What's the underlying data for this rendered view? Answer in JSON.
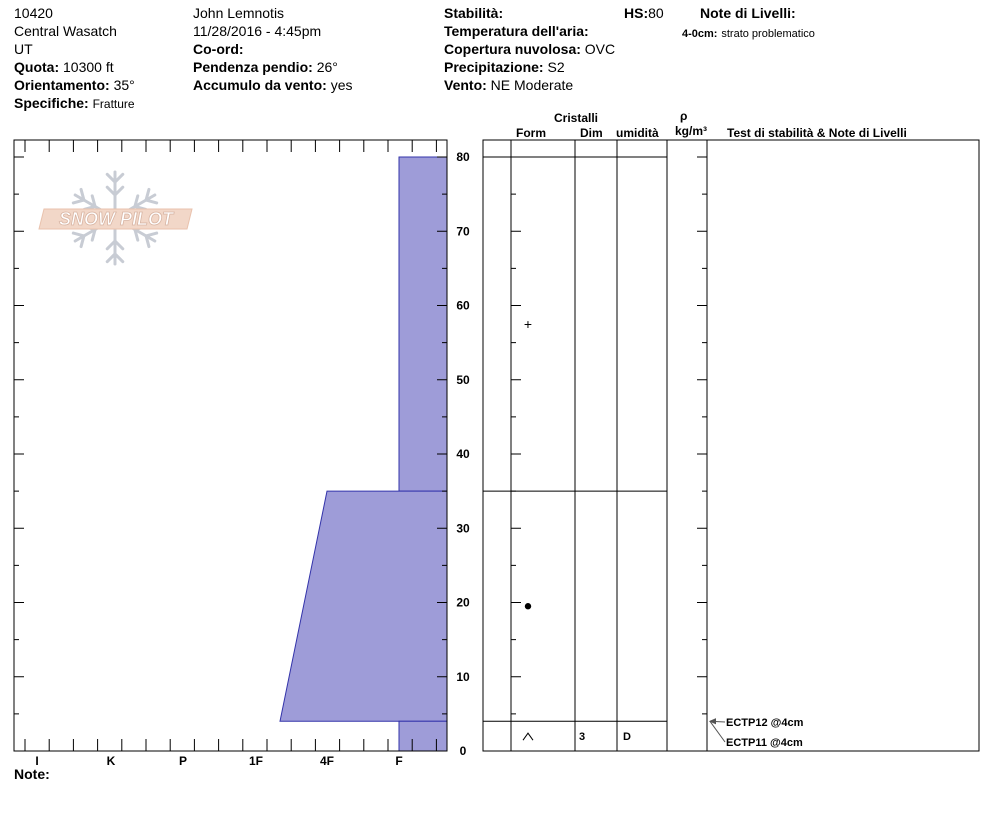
{
  "header": {
    "id": "10420",
    "range": "Central Wasatch",
    "state": "UT",
    "elevation_label": "Quota:",
    "elevation_value": "10300 ft",
    "aspect_label": "Orientamento:",
    "aspect_value": "35°",
    "specifics_label": "Specifiche:",
    "specifics_value": "Fratture",
    "observer": "John  Lemnotis",
    "datetime": "11/28/2016 - 4:45pm",
    "coord_label": "Co-ord:",
    "slope_label": "Pendenza pendio:",
    "slope_value": "26°",
    "wind_loading_label": "Accumulo da vento:",
    "wind_loading_value": "yes",
    "stability_label": "Stabilità:",
    "air_temp_label": "Temperatura dell'aria:",
    "cloud_label": "Copertura nuvolosa:",
    "cloud_value": "OVC",
    "precip_label": "Precipitazione:",
    "precip_value": "S2",
    "wind_label": "Vento:",
    "wind_value": "NE Moderate",
    "hs_label": "HS:",
    "hs_value": "80",
    "layer_notes_label": "Note di Livelli:",
    "layer_note_depth": "4-0cm:",
    "layer_note_text": "strato problematico"
  },
  "logo": {
    "text": "SNOW PILOT"
  },
  "columns": {
    "crystals": "Cristalli",
    "form": "Form",
    "size": "Dim",
    "moisture": "umidità",
    "rho": "ρ",
    "density_unit": "kg/m³",
    "tests": "Test di stabilità & Note di Livelli"
  },
  "footer": {
    "note_label": "Note:"
  },
  "colors": {
    "hardness_fill": "#9e9cd8",
    "hardness_stroke": "#3333aa"
  },
  "chart_data": {
    "type": "snow_profile",
    "y_axis": {
      "min": 0,
      "max": 80,
      "ticks": [
        0,
        10,
        20,
        30,
        40,
        50,
        60,
        70,
        80
      ],
      "minor_step": 5
    },
    "hardness_scale": [
      "I",
      "K",
      "P",
      "1F",
      "4F",
      "F"
    ],
    "hardness_profile": [
      {
        "top": 80,
        "bottom": 35,
        "hardness_top": "F",
        "hardness_bottom": "F"
      },
      {
        "top": 35,
        "bottom": 4,
        "hardness_top": "4F",
        "hardness_bottom": "1F-"
      },
      {
        "top": 4,
        "bottom": 0,
        "hardness_top": "F",
        "hardness_bottom": "F"
      }
    ],
    "layer_boundaries": [
      80,
      35,
      4
    ],
    "layers": [
      {
        "top": 80,
        "bottom": 35,
        "form_symbol": "+",
        "form_height": 57.5,
        "size": "",
        "moisture": ""
      },
      {
        "top": 35,
        "bottom": 4,
        "form_symbol": "●",
        "form_height": 19.5,
        "size": "",
        "moisture": ""
      },
      {
        "top": 4,
        "bottom": 0,
        "form_symbol": "^",
        "form_height": 2,
        "size": "3",
        "moisture": "D"
      }
    ],
    "tests": [
      {
        "label": "ECTP12 @4cm",
        "depth": 4
      },
      {
        "label": "ECTP11 @4cm",
        "depth": 4
      }
    ]
  }
}
